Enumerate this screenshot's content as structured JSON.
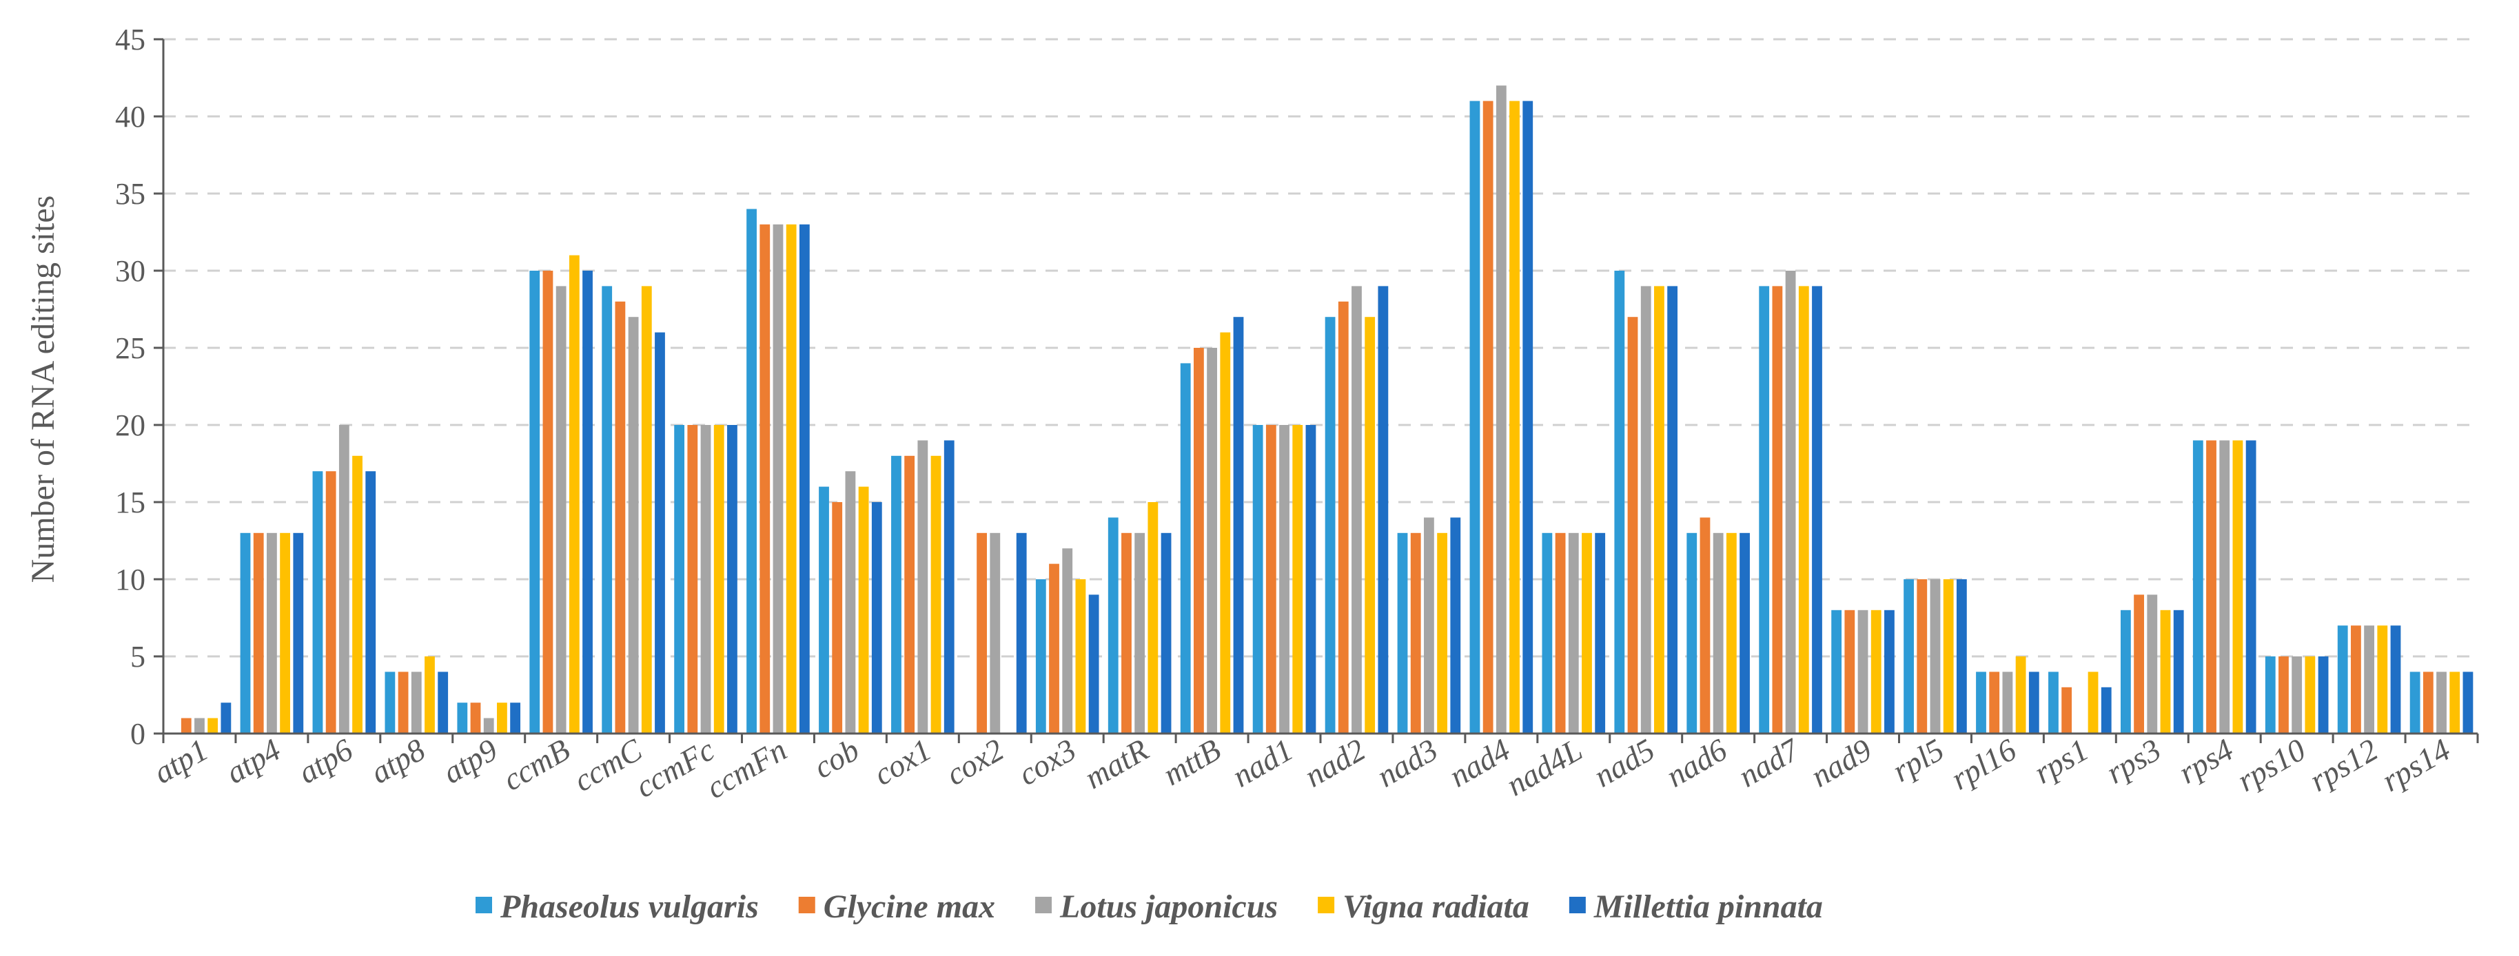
{
  "chart_data": {
    "type": "bar",
    "title": "",
    "xlabel": "",
    "ylabel": "Number of RNA editing sites",
    "ylim": [
      0,
      45
    ],
    "yticks": [
      "0",
      "5",
      "10",
      "15",
      "20",
      "25",
      "30",
      "35",
      "40",
      "45"
    ],
    "grid": true,
    "legend_position": "bottom",
    "categories": [
      "atp1",
      "atp4",
      "atp6",
      "atp8",
      "atp9",
      "ccmB",
      "ccmC",
      "ccmFc",
      "ccmFn",
      "cob",
      "cox1",
      "cox2",
      "cox3",
      "matR",
      "mttB",
      "nad1",
      "nad2",
      "nad3",
      "nad4",
      "nad4L",
      "nad5",
      "nad6",
      "nad7",
      "nad9",
      "rpl5",
      "rpl16",
      "rps1",
      "rps3",
      "rps4",
      "rps10",
      "rps12",
      "rps14"
    ],
    "series": [
      {
        "name": "Phaseolus vulgaris",
        "color": "#2E9BD6",
        "values": [
          0,
          13,
          17,
          4,
          2,
          30,
          29,
          20,
          34,
          16,
          18,
          0,
          10,
          14,
          24,
          20,
          27,
          13,
          41,
          13,
          30,
          13,
          29,
          8,
          10,
          4,
          4,
          8,
          19,
          5,
          7,
          4
        ]
      },
      {
        "name": "Glycine max",
        "color": "#ED7D31",
        "values": [
          1,
          13,
          17,
          4,
          2,
          30,
          28,
          20,
          33,
          15,
          18,
          13,
          11,
          13,
          25,
          20,
          28,
          13,
          41,
          13,
          27,
          14,
          29,
          8,
          10,
          4,
          3,
          9,
          19,
          5,
          7,
          4
        ]
      },
      {
        "name": "Lotus japonicus",
        "color": "#A5A5A5",
        "values": [
          1,
          13,
          20,
          4,
          1,
          29,
          27,
          20,
          33,
          17,
          19,
          13,
          12,
          13,
          25,
          20,
          29,
          14,
          42,
          13,
          29,
          13,
          30,
          8,
          10,
          4,
          0,
          9,
          19,
          5,
          7,
          4
        ]
      },
      {
        "name": "Vigna radiata",
        "color": "#FFC000",
        "values": [
          1,
          13,
          18,
          5,
          2,
          31,
          29,
          20,
          33,
          16,
          18,
          0,
          10,
          15,
          26,
          20,
          27,
          13,
          41,
          13,
          29,
          13,
          29,
          8,
          10,
          5,
          4,
          8,
          19,
          5,
          7,
          4
        ]
      },
      {
        "name": "Millettia pinnata",
        "color": "#1F6FC5",
        "values": [
          2,
          13,
          17,
          4,
          2,
          30,
          26,
          20,
          33,
          15,
          19,
          13,
          9,
          13,
          27,
          20,
          29,
          14,
          41,
          13,
          29,
          13,
          29,
          8,
          10,
          4,
          3,
          8,
          19,
          5,
          7,
          4
        ]
      }
    ]
  }
}
